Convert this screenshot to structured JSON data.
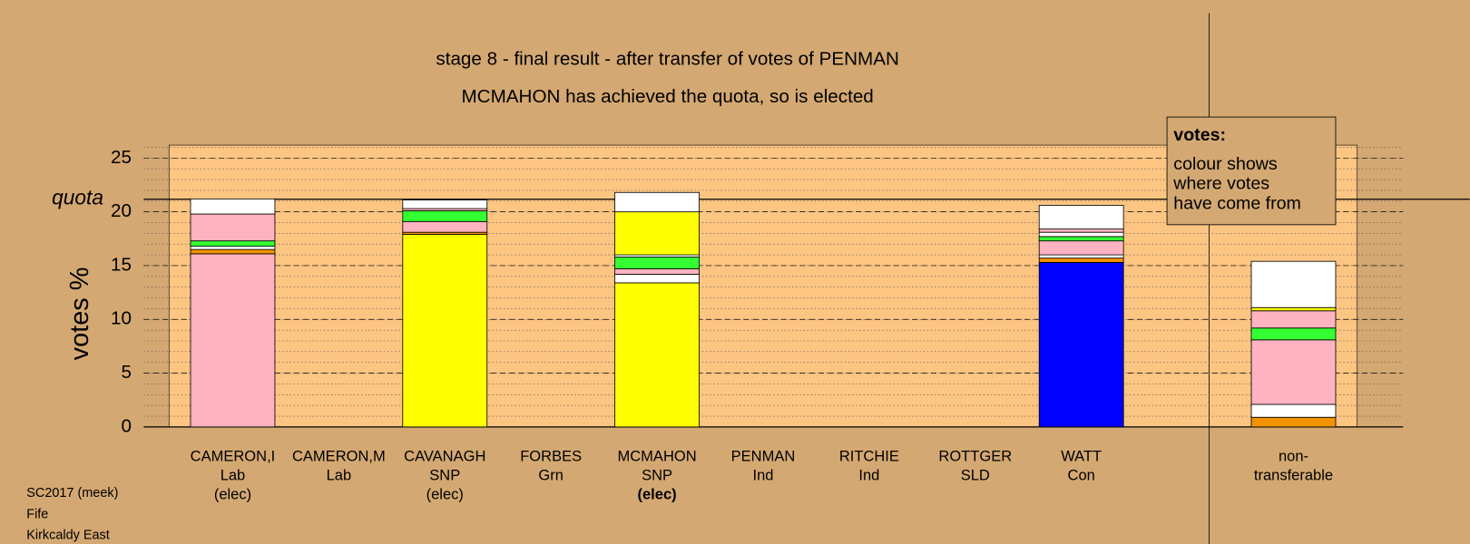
{
  "chart_data": {
    "type": "stacked-bar",
    "title": "stage 8 - final result - after transfer of votes of PENMAN",
    "subtitle": "MCMAHON has achieved the quota, so is elected",
    "y_label": "votes %",
    "ylim": [
      0,
      26.2
    ],
    "yticks": [
      0,
      5,
      10,
      15,
      20,
      25
    ],
    "minor_grid_step": 1,
    "grid": true,
    "quota": {
      "value": 21.17,
      "label": "quota"
    },
    "categories": [
      [
        "CAMERON,I",
        "Lab",
        "(elec)"
      ],
      [
        "CAMERON,M",
        "Lab"
      ],
      [
        "CAVANAGH",
        "SNP",
        "(elec)"
      ],
      [
        "FORBES",
        "Grn"
      ],
      [
        "MCMAHON",
        "SNP",
        "(elec)"
      ],
      [
        "PENMAN",
        "Ind"
      ],
      [
        "RITCHIE",
        "Ind"
      ],
      [
        "ROTTGER",
        "SLD"
      ],
      [
        "WATT",
        "Con"
      ],
      [
        "non-",
        "transferable"
      ]
    ],
    "highlight_label": {
      "category": 4,
      "line": 2
    },
    "stacks": [
      [
        16.1,
        0.4,
        0.3,
        0.5,
        2.5,
        1.4
      ],
      [
        0
      ],
      [
        17.9,
        0.2,
        1.0,
        1.0,
        0.2,
        0.8
      ],
      [
        0
      ],
      [
        13.4,
        0.8,
        0.5,
        1.1,
        0.2,
        4.0,
        1.8
      ],
      [
        0
      ],
      [
        0
      ],
      [
        0
      ],
      [
        15.3,
        0.4,
        0.3,
        1.3,
        0.4,
        0.4,
        0.3,
        2.2
      ],
      [
        0.9,
        1.2,
        6.0,
        1.1,
        1.6,
        0.3,
        4.3
      ]
    ],
    "stack_colors": [
      [
        "#ffb3c0",
        "#f39200",
        "#ffffff",
        "#33ff33",
        "#ffb3c0",
        "#ffffff"
      ],
      [
        "#ffb3c0"
      ],
      [
        "#ffff00",
        "#f39200",
        "#ffb3c0",
        "#33ff33",
        "#ffb3c0",
        "#ffffff"
      ],
      [
        "#33ff33"
      ],
      [
        "#ffff00",
        "#ffffff",
        "#ffb3c0",
        "#33ff33",
        "#ffffff",
        "#ffff00",
        "#ffffff"
      ],
      [
        "#ffffff"
      ],
      [
        "#ffffff"
      ],
      [
        "#ffffff"
      ],
      [
        "#0000ff",
        "#f39200",
        "#ffffff",
        "#ffb3c0",
        "#33ff33",
        "#ffffff",
        "#ffb3c0",
        "#ffffff"
      ],
      [
        "#f39200",
        "#ffffff",
        "#ffb3c0",
        "#33ff33",
        "#ffb3c0",
        "#ffff00",
        "#ffffff"
      ]
    ],
    "legend_box": [
      "votes:",
      "colour shows",
      "where votes",
      "have come from"
    ],
    "footer": [
      "SC2017 (meek)",
      "Fife",
      "Kirkcaldy East"
    ]
  }
}
